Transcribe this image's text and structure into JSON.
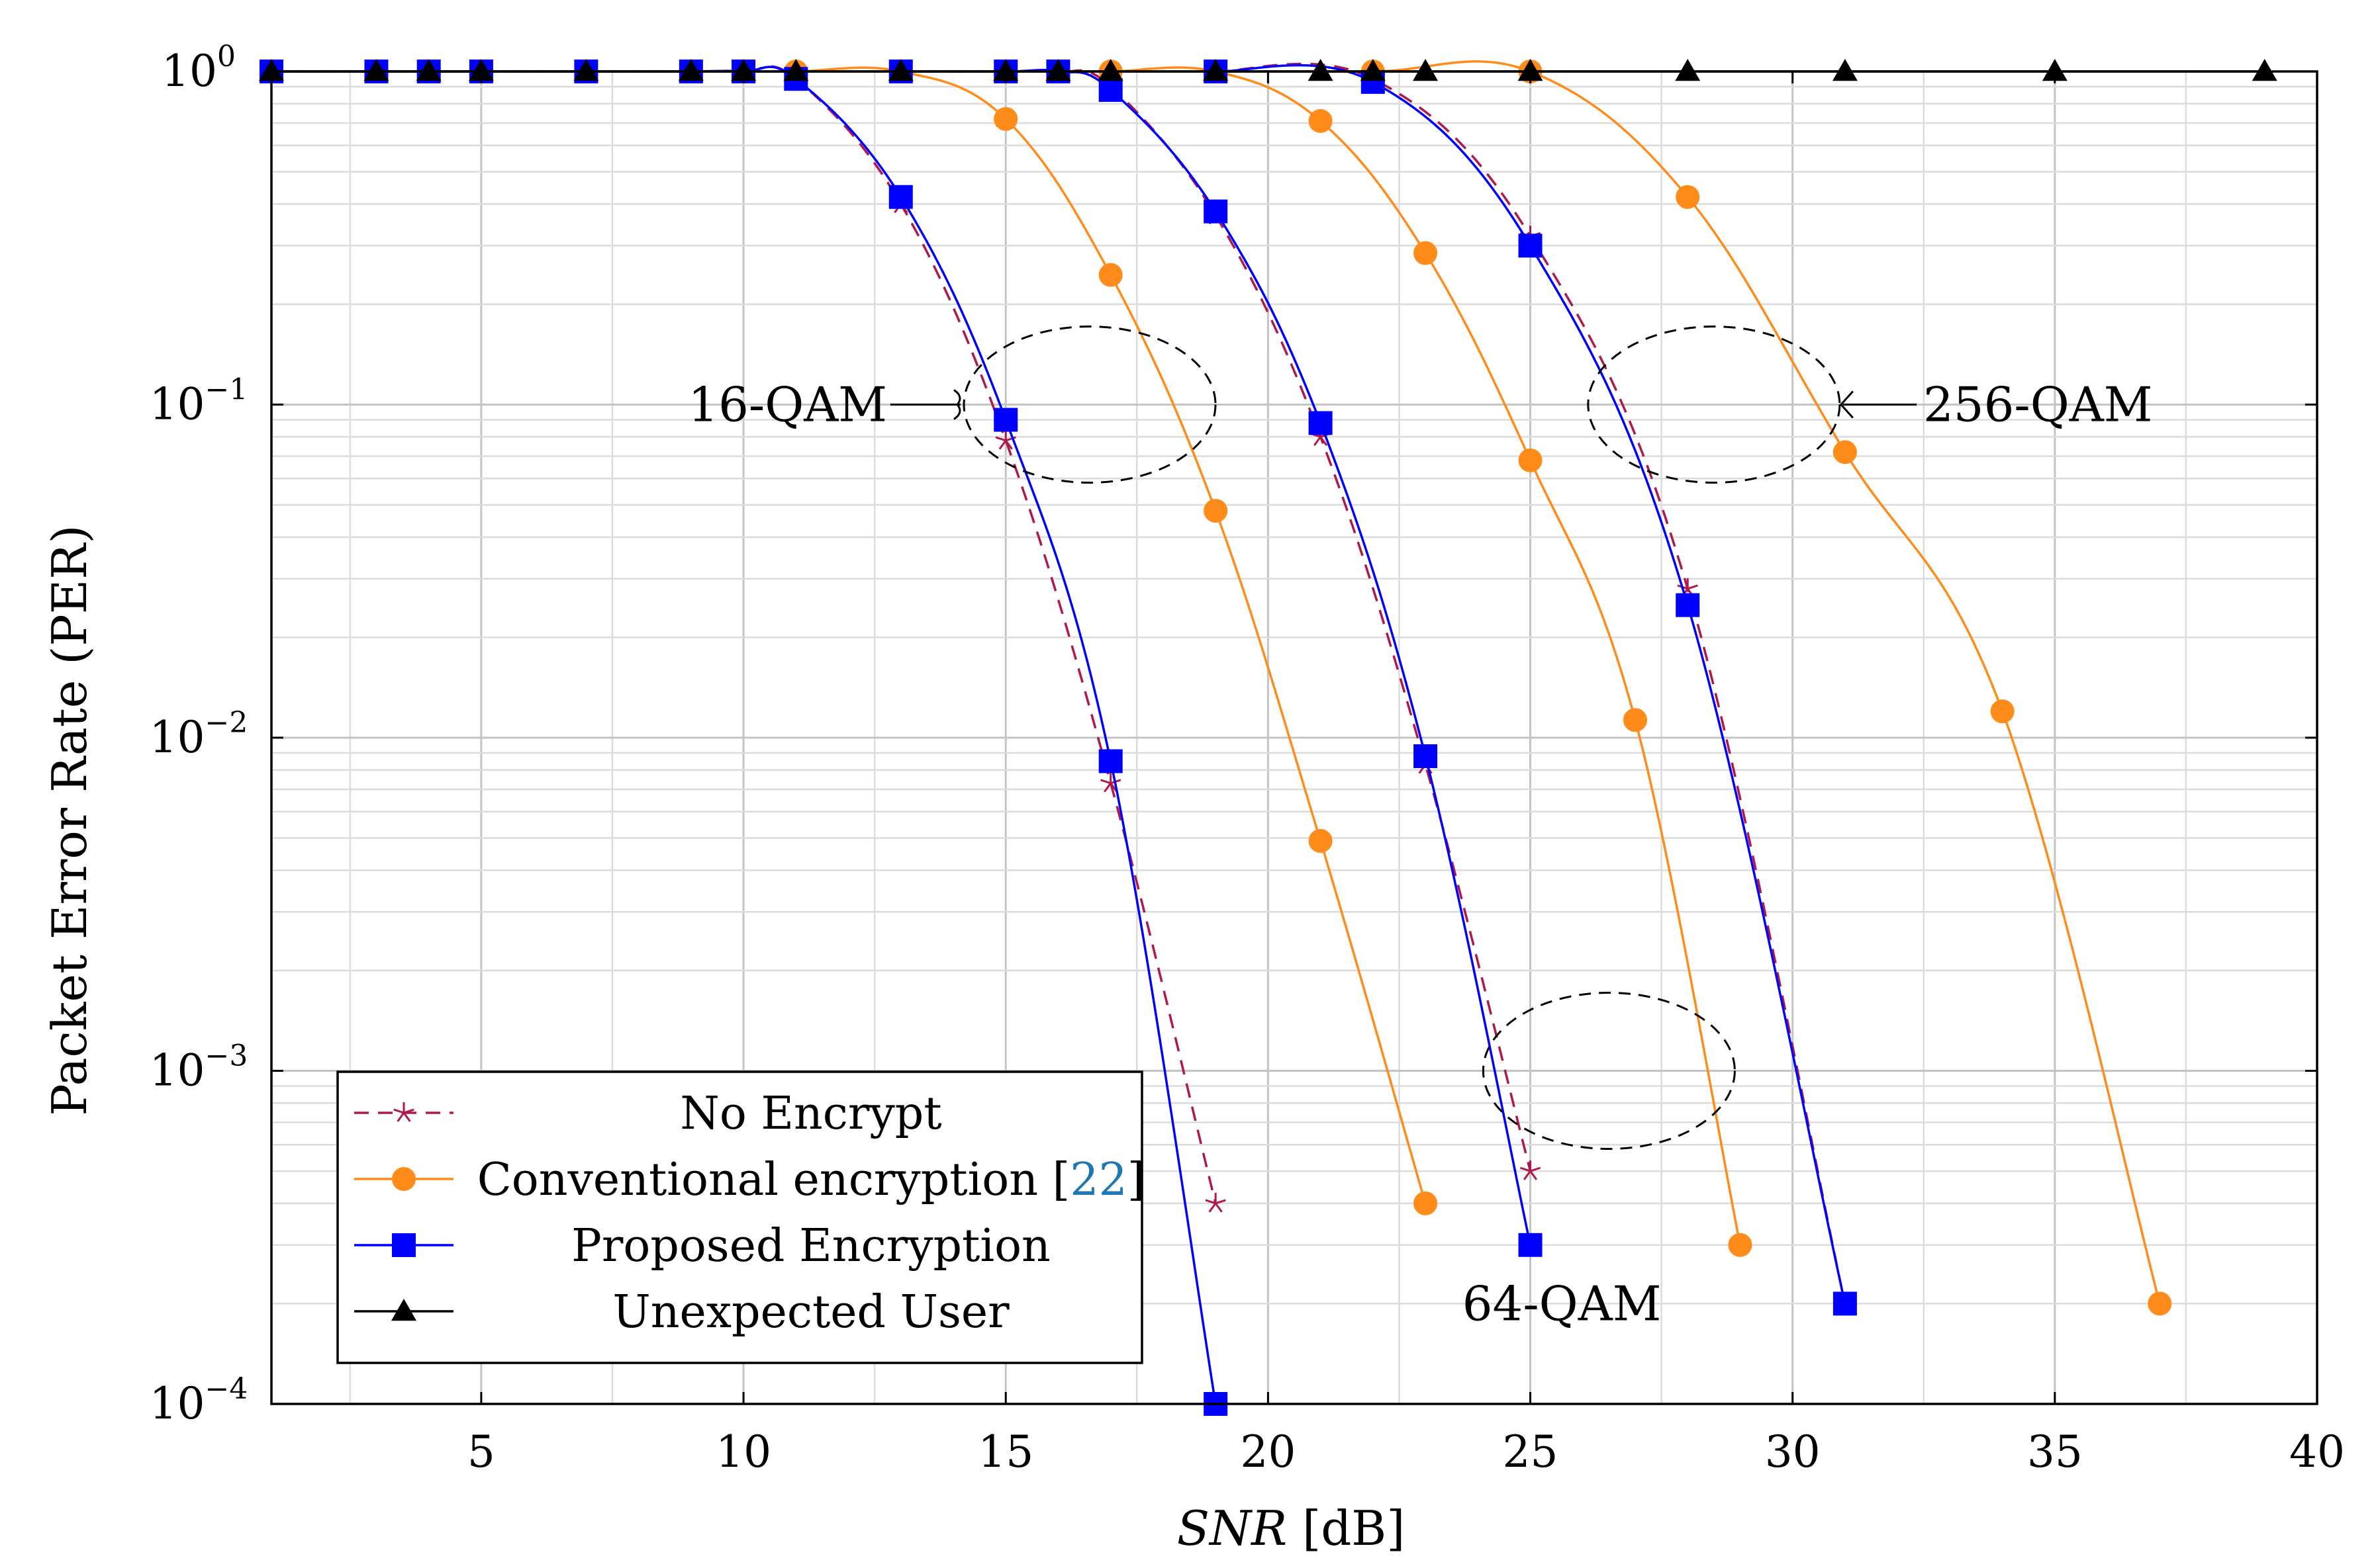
{
  "chart_data": {
    "type": "line",
    "title": "",
    "xlabel_italic": "SNR",
    "xlabel_rest": " [dB]",
    "ylabel": "Packet Error Rate (PER)",
    "x_range": [
      1,
      40
    ],
    "y_range": [
      0.0001,
      1
    ],
    "y_scale": "log",
    "grid": true,
    "legend_position": "bottom-left",
    "x_ticks": [
      5,
      10,
      15,
      20,
      25,
      30,
      35,
      40
    ],
    "y_ticks": [
      {
        "value": 1,
        "base": "10",
        "exp": "0"
      },
      {
        "value": 0.1,
        "base": "10",
        "exp": "−1"
      },
      {
        "value": 0.01,
        "base": "10",
        "exp": "−2"
      },
      {
        "value": 0.001,
        "base": "10",
        "exp": "−3"
      },
      {
        "value": 0.0001,
        "base": "10",
        "exp": "−4"
      }
    ],
    "colors": {
      "no_encrypt": "#b0184b",
      "conventional": "#ff8c1a",
      "proposed": "#0000ff",
      "unexpected": "#000000"
    },
    "legend": [
      {
        "key": "no_encrypt",
        "label": "No Encrypt",
        "ref": ""
      },
      {
        "key": "conventional",
        "label": "Conventional encryption [",
        "ref": "22",
        "suffix": "]"
      },
      {
        "key": "proposed",
        "label": "Proposed Encryption",
        "ref": ""
      },
      {
        "key": "unexpected",
        "label": "Unexpected User",
        "ref": ""
      }
    ],
    "annotations": [
      {
        "label": "16-QAM",
        "cx": 16.6,
        "cy": 0.1
      },
      {
        "label": "64-QAM",
        "cx": 26.5,
        "cy": 0.001
      },
      {
        "label": "256-QAM",
        "cx": 28.5,
        "cy": 0.1
      }
    ],
    "series": [
      {
        "group": "16-QAM",
        "style": "no_encrypt",
        "points": [
          [
            1,
            1
          ],
          [
            3,
            1
          ],
          [
            4,
            1
          ],
          [
            5,
            1
          ],
          [
            7,
            1
          ],
          [
            9,
            1
          ],
          [
            10,
            1
          ],
          [
            11,
            0.95
          ],
          [
            13,
            0.4
          ],
          [
            15,
            0.078
          ],
          [
            17,
            0.0073
          ],
          [
            19,
            0.0004
          ]
        ]
      },
      {
        "group": "16-QAM",
        "style": "conventional",
        "points": [
          [
            1,
            1
          ],
          [
            3,
            1
          ],
          [
            4,
            1
          ],
          [
            5,
            1
          ],
          [
            7,
            1
          ],
          [
            9,
            1
          ],
          [
            10,
            1
          ],
          [
            11,
            1
          ],
          [
            13,
            1
          ],
          [
            15,
            0.72
          ],
          [
            17,
            0.245
          ],
          [
            19,
            0.048
          ],
          [
            21,
            0.0049
          ],
          [
            23,
            0.0004
          ]
        ]
      },
      {
        "group": "16-QAM",
        "style": "proposed",
        "points": [
          [
            1,
            1
          ],
          [
            3,
            1
          ],
          [
            4,
            1
          ],
          [
            5,
            1
          ],
          [
            7,
            1
          ],
          [
            9,
            1
          ],
          [
            10,
            1
          ],
          [
            11,
            0.95
          ],
          [
            13,
            0.42
          ],
          [
            15,
            0.09
          ],
          [
            17,
            0.0085
          ],
          [
            19,
            0.0001
          ]
        ]
      },
      {
        "group": "64-QAM",
        "style": "no_encrypt",
        "points": [
          [
            13,
            1
          ],
          [
            15,
            1
          ],
          [
            16,
            1
          ],
          [
            17,
            0.9
          ],
          [
            19,
            0.37
          ],
          [
            21,
            0.08
          ],
          [
            23,
            0.0083
          ],
          [
            25,
            0.0005
          ]
        ]
      },
      {
        "group": "64-QAM",
        "style": "conventional",
        "points": [
          [
            13,
            1
          ],
          [
            15,
            1
          ],
          [
            16,
            1
          ],
          [
            17,
            1
          ],
          [
            19,
            1
          ],
          [
            21,
            0.71
          ],
          [
            23,
            0.285
          ],
          [
            25,
            0.068
          ],
          [
            27,
            0.0113
          ],
          [
            29,
            0.0003
          ]
        ]
      },
      {
        "group": "64-QAM",
        "style": "proposed",
        "points": [
          [
            13,
            1
          ],
          [
            15,
            1
          ],
          [
            16,
            1
          ],
          [
            17,
            0.88
          ],
          [
            19,
            0.38
          ],
          [
            21,
            0.088
          ],
          [
            23,
            0.0088
          ],
          [
            25,
            0.0003
          ]
        ]
      },
      {
        "group": "256-QAM",
        "style": "no_encrypt",
        "points": [
          [
            19,
            1
          ],
          [
            22,
            0.95
          ],
          [
            25,
            0.32
          ],
          [
            28,
            0.028
          ],
          [
            31,
            0.0002
          ]
        ]
      },
      {
        "group": "256-QAM",
        "style": "conventional",
        "points": [
          [
            19,
            1
          ],
          [
            22,
            1
          ],
          [
            25,
            1
          ],
          [
            28,
            0.42
          ],
          [
            31,
            0.072
          ],
          [
            34,
            0.012
          ],
          [
            37,
            0.0002
          ]
        ]
      },
      {
        "group": "256-QAM",
        "style": "proposed",
        "points": [
          [
            19,
            1
          ],
          [
            22,
            0.93
          ],
          [
            25,
            0.3
          ],
          [
            28,
            0.025
          ],
          [
            31,
            0.0002
          ]
        ]
      },
      {
        "group": "all",
        "style": "unexpected",
        "points": [
          [
            1,
            1
          ],
          [
            3,
            1
          ],
          [
            4,
            1
          ],
          [
            5,
            1
          ],
          [
            7,
            1
          ],
          [
            9,
            1
          ],
          [
            10,
            1
          ],
          [
            11,
            1
          ],
          [
            13,
            1
          ],
          [
            15,
            1
          ],
          [
            16,
            1
          ],
          [
            17,
            1
          ],
          [
            19,
            1
          ],
          [
            21,
            1
          ],
          [
            22,
            1
          ],
          [
            23,
            1
          ],
          [
            25,
            1
          ],
          [
            28,
            1
          ],
          [
            31,
            1
          ],
          [
            35,
            1
          ],
          [
            39,
            1
          ]
        ]
      }
    ]
  }
}
